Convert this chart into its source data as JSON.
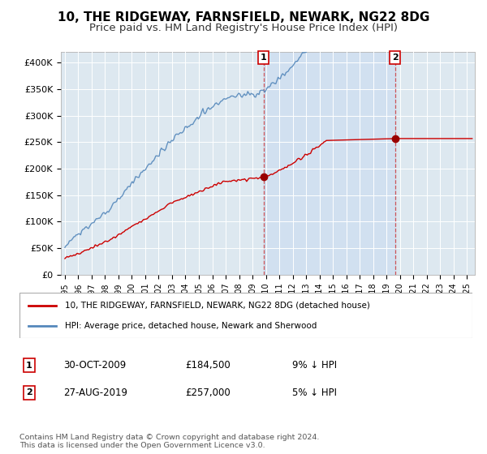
{
  "title": "10, THE RIDGEWAY, FARNSFIELD, NEWARK, NG22 8DG",
  "subtitle": "Price paid vs. HM Land Registry's House Price Index (HPI)",
  "title_fontsize": 11,
  "subtitle_fontsize": 9.5,
  "background_color": "#ffffff",
  "plot_bg_color": "#dde8f0",
  "grid_color": "#ffffff",
  "shade_color": "#ccddf0",
  "ylim": [
    0,
    420000
  ],
  "yticks": [
    0,
    50000,
    100000,
    150000,
    200000,
    250000,
    300000,
    350000,
    400000
  ],
  "ytick_labels": [
    "£0",
    "£50K",
    "£100K",
    "£150K",
    "£200K",
    "£250K",
    "£300K",
    "£350K",
    "£400K"
  ],
  "hpi_color": "#5588bb",
  "price_color": "#cc0000",
  "sale1_date_label": "30-OCT-2009",
  "sale1_price": 184500,
  "sale1_hpi_pct": "9% ↓ HPI",
  "sale2_date_label": "27-AUG-2019",
  "sale2_price": 257000,
  "sale2_hpi_pct": "5% ↓ HPI",
  "legend_label1": "10, THE RIDGEWAY, FARNSFIELD, NEWARK, NG22 8DG (detached house)",
  "legend_label2": "HPI: Average price, detached house, Newark and Sherwood",
  "footer": "Contains HM Land Registry data © Crown copyright and database right 2024.\nThis data is licensed under the Open Government Licence v3.0.",
  "sale1_x": 2009.83,
  "sale2_x": 2019.65,
  "xstart": 1995.0,
  "xend": 2025.4
}
